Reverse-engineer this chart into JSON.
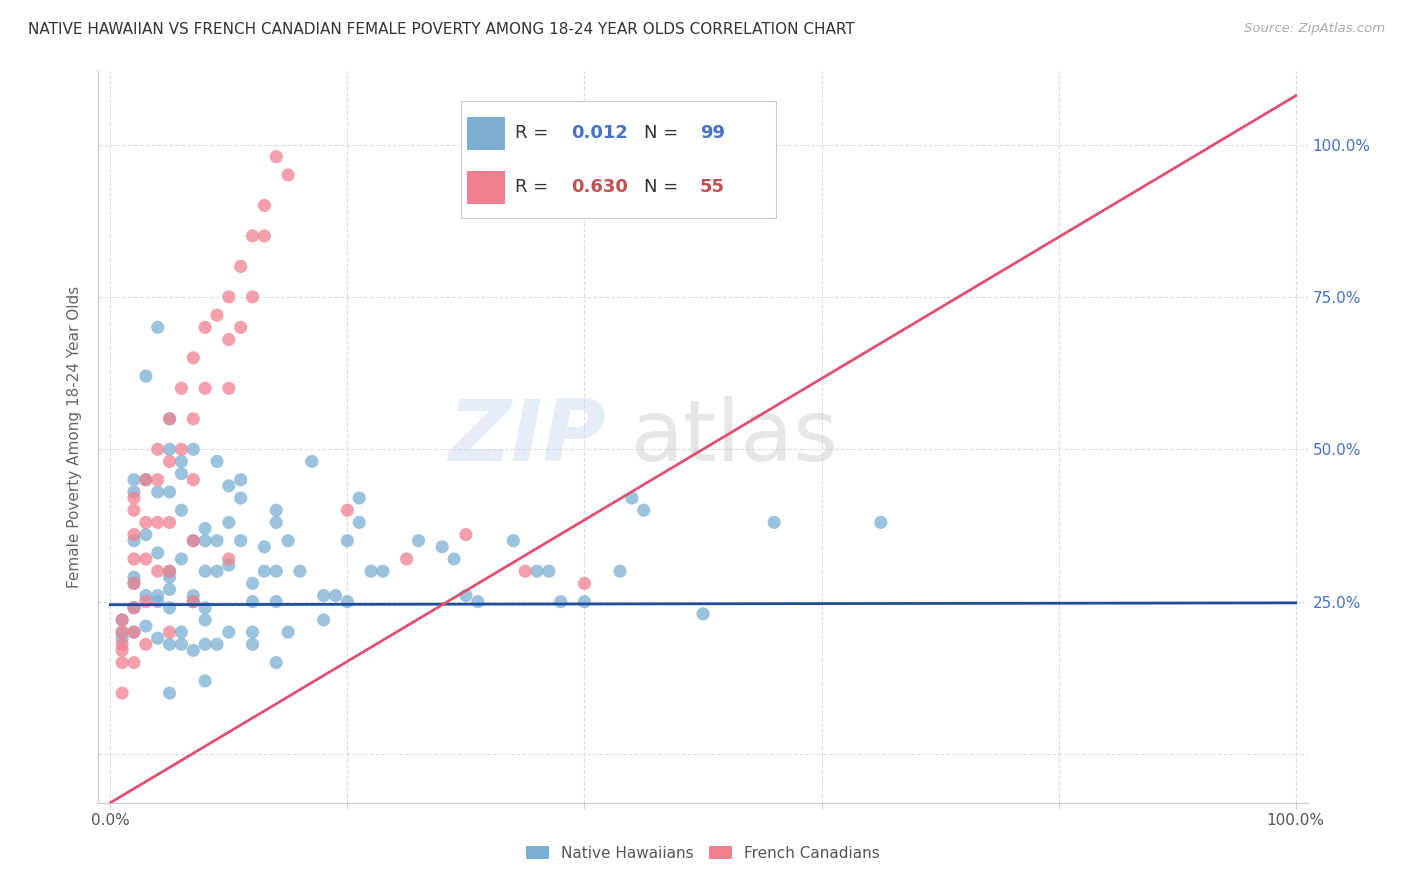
{
  "title": "NATIVE HAWAIIAN VS FRENCH CANADIAN FEMALE POVERTY AMONG 18-24 YEAR OLDS CORRELATION CHART",
  "source": "Source: ZipAtlas.com",
  "ylabel": "Female Poverty Among 18-24 Year Olds",
  "watermark_zip": "ZIP",
  "watermark_atlas": "atlas",
  "background_color": "#ffffff",
  "grid_color": "#dddddd",
  "nh_color": "#7bafd4",
  "fc_color": "#f08090",
  "nh_line_color": "#1f4e99",
  "fc_line_color": "#e05070",
  "nh_trend_y0": 24.5,
  "nh_trend_y1": 24.8,
  "fc_trend_y0": -8,
  "fc_trend_y1": 108,
  "nh_R": "0.012",
  "nh_N": "99",
  "fc_R": "0.630",
  "fc_N": "55",
  "xlim": [
    -1,
    101
  ],
  "ylim": [
    -8,
    112
  ],
  "native_hawaiians_x": [
    1,
    1,
    1,
    2,
    2,
    2,
    2,
    2,
    2,
    2,
    3,
    3,
    3,
    3,
    3,
    4,
    4,
    4,
    4,
    4,
    4,
    5,
    5,
    5,
    5,
    5,
    5,
    5,
    5,
    5,
    6,
    6,
    6,
    6,
    6,
    6,
    7,
    7,
    7,
    7,
    7,
    8,
    8,
    8,
    8,
    8,
    8,
    8,
    9,
    9,
    9,
    9,
    10,
    10,
    10,
    10,
    11,
    11,
    11,
    12,
    12,
    12,
    12,
    13,
    13,
    14,
    14,
    14,
    14,
    14,
    15,
    15,
    16,
    17,
    18,
    18,
    19,
    20,
    20,
    21,
    21,
    22,
    23,
    26,
    28,
    29,
    30,
    31,
    34,
    36,
    37,
    38,
    40,
    43,
    44,
    45,
    50,
    56,
    65
  ],
  "native_hawaiians_y": [
    22,
    20,
    19,
    45,
    43,
    35,
    29,
    28,
    24,
    20,
    62,
    45,
    36,
    26,
    21,
    70,
    43,
    33,
    26,
    25,
    19,
    55,
    50,
    43,
    30,
    29,
    27,
    24,
    18,
    10,
    48,
    46,
    40,
    32,
    20,
    18,
    50,
    35,
    26,
    25,
    17,
    37,
    35,
    30,
    24,
    22,
    18,
    12,
    48,
    35,
    30,
    18,
    44,
    38,
    31,
    20,
    45,
    42,
    35,
    28,
    25,
    20,
    18,
    34,
    30,
    40,
    38,
    30,
    25,
    15,
    35,
    20,
    30,
    48,
    26,
    22,
    26,
    35,
    25,
    42,
    38,
    30,
    30,
    35,
    34,
    32,
    26,
    25,
    35,
    30,
    30,
    25,
    25,
    30,
    42,
    40,
    23,
    38,
    38
  ],
  "french_canadians_x": [
    1,
    1,
    1,
    1,
    1,
    1,
    2,
    2,
    2,
    2,
    2,
    2,
    2,
    2,
    3,
    3,
    3,
    3,
    3,
    4,
    4,
    4,
    4,
    5,
    5,
    5,
    5,
    5,
    6,
    6,
    7,
    7,
    7,
    7,
    7,
    8,
    8,
    9,
    10,
    10,
    10,
    10,
    11,
    11,
    12,
    12,
    13,
    13,
    14,
    15,
    20,
    25,
    30,
    35,
    40
  ],
  "french_canadians_y": [
    22,
    20,
    18,
    17,
    15,
    10,
    42,
    40,
    36,
    32,
    28,
    24,
    20,
    15,
    45,
    38,
    32,
    25,
    18,
    50,
    45,
    38,
    30,
    55,
    48,
    38,
    30,
    20,
    60,
    50,
    65,
    55,
    45,
    35,
    25,
    70,
    60,
    72,
    75,
    68,
    60,
    32,
    80,
    70,
    85,
    75,
    90,
    85,
    98,
    95,
    40,
    32,
    36,
    30,
    28
  ]
}
